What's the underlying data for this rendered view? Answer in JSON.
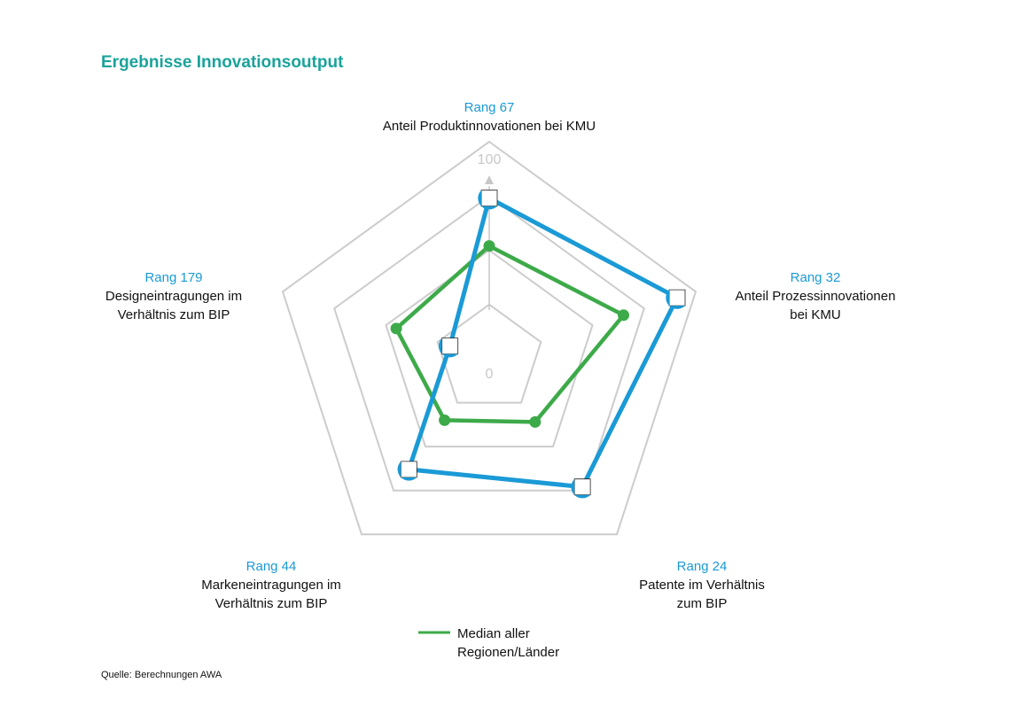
{
  "title": "Ergebnisse Innovationsoutput",
  "source": "Quelle: Berechnungen AWA",
  "colors": {
    "title": "#1aa39a",
    "rank": "#1a9ad6",
    "region": "#1a9ad6",
    "median": "#3daa49",
    "grid": "#cccccc"
  },
  "chart_data": {
    "type": "radar",
    "range": [
      0,
      100
    ],
    "grid_rings": 4,
    "scale_labels": {
      "max": "100",
      "min": "0"
    },
    "axes": [
      {
        "rank": "Rang 67",
        "name_lines": [
          "Anteil Produktinnovationen bei KMU"
        ]
      },
      {
        "rank": "Rang 32",
        "name_lines": [
          "Anteil Prozessinnovationen",
          "bei KMU"
        ]
      },
      {
        "rank": "Rang 24",
        "name_lines": [
          "Patente im Verhältnis",
          "zum BIP"
        ]
      },
      {
        "rank": "Rang 44",
        "name_lines": [
          "Markeneintragungen im",
          "Verhältnis zum BIP"
        ]
      },
      {
        "rank": "Rang 179",
        "name_lines": [
          "Designeintragungen im",
          "Verhältnis zum BIP"
        ]
      }
    ],
    "series": [
      {
        "key": "region",
        "values": [
          74,
          91,
          73,
          63,
          19
        ]
      },
      {
        "key": "median",
        "name_lines": [
          "Median aller",
          "Regionen/Länder"
        ],
        "values": [
          52,
          65,
          36,
          35,
          45
        ]
      }
    ],
    "legend": {
      "position": "bottom"
    }
  }
}
